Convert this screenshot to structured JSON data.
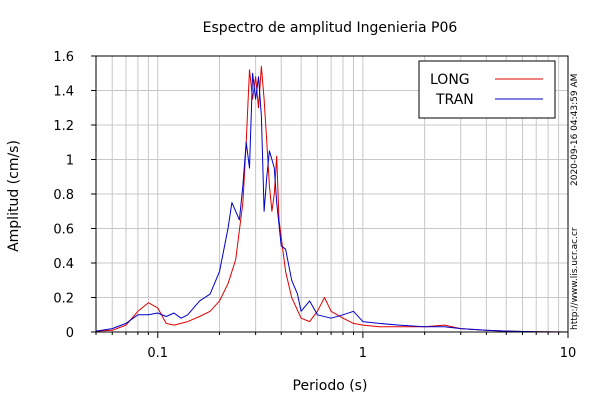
{
  "chart_data": {
    "type": "line",
    "title": "Espectro de amplitud Ingenieria P06",
    "xlabel": "Periodo (s)",
    "ylabel": "Amplitud (cm/s)",
    "xscale": "log",
    "xlim": [
      0.05,
      10
    ],
    "ylim": [
      0,
      1.6
    ],
    "x_tick_labels": [
      {
        "value": 0.1,
        "label": "0.1"
      },
      {
        "value": 1,
        "label": "1"
      },
      {
        "value": 10,
        "label": "10"
      }
    ],
    "y_tick_labels": [
      "0",
      "0.2",
      "0.4",
      "0.6",
      "0.8",
      "1",
      "1.2",
      "1.4",
      "1.6"
    ],
    "grid": true,
    "legend_position": "top-right",
    "series": [
      {
        "name": "LONG",
        "color": "#dd0000",
        "x": [
          0.05,
          0.06,
          0.07,
          0.08,
          0.09,
          0.1,
          0.11,
          0.12,
          0.14,
          0.16,
          0.18,
          0.2,
          0.22,
          0.24,
          0.26,
          0.27,
          0.28,
          0.29,
          0.3,
          0.31,
          0.32,
          0.33,
          0.34,
          0.35,
          0.36,
          0.37,
          0.38,
          0.39,
          0.4,
          0.42,
          0.45,
          0.5,
          0.55,
          0.6,
          0.65,
          0.7,
          0.8,
          0.9,
          1.0,
          1.2,
          1.5,
          2.0,
          2.5,
          3.0,
          4.0,
          5.0,
          7.0,
          10.0
        ],
        "values": [
          0.005,
          0.01,
          0.04,
          0.12,
          0.17,
          0.14,
          0.05,
          0.04,
          0.06,
          0.09,
          0.12,
          0.18,
          0.28,
          0.42,
          0.75,
          1.1,
          1.52,
          1.35,
          1.48,
          1.3,
          1.54,
          1.35,
          1.1,
          0.85,
          0.7,
          0.8,
          1.02,
          0.65,
          0.55,
          0.35,
          0.2,
          0.08,
          0.06,
          0.12,
          0.2,
          0.12,
          0.08,
          0.05,
          0.04,
          0.03,
          0.03,
          0.03,
          0.04,
          0.02,
          0.01,
          0.005,
          0.002,
          0.0
        ]
      },
      {
        "name": "TRAN",
        "color": "#0000cc",
        "x": [
          0.05,
          0.06,
          0.07,
          0.08,
          0.09,
          0.1,
          0.11,
          0.12,
          0.13,
          0.14,
          0.16,
          0.18,
          0.2,
          0.22,
          0.23,
          0.24,
          0.25,
          0.26,
          0.27,
          0.28,
          0.29,
          0.3,
          0.31,
          0.32,
          0.33,
          0.34,
          0.35,
          0.36,
          0.37,
          0.38,
          0.4,
          0.42,
          0.45,
          0.48,
          0.5,
          0.55,
          0.6,
          0.7,
          0.8,
          0.9,
          1.0,
          1.2,
          1.5,
          2.0,
          2.5,
          3.0,
          4.0,
          5.0,
          7.0,
          10.0
        ],
        "values": [
          0.005,
          0.02,
          0.05,
          0.1,
          0.1,
          0.11,
          0.09,
          0.11,
          0.08,
          0.1,
          0.18,
          0.22,
          0.35,
          0.6,
          0.75,
          0.7,
          0.65,
          0.85,
          1.1,
          0.95,
          1.5,
          1.35,
          1.48,
          1.25,
          0.7,
          0.9,
          1.05,
          1.0,
          0.95,
          0.75,
          0.5,
          0.48,
          0.3,
          0.22,
          0.12,
          0.18,
          0.1,
          0.08,
          0.1,
          0.12,
          0.06,
          0.05,
          0.04,
          0.03,
          0.03,
          0.02,
          0.01,
          0.005,
          0.002,
          0.0
        ]
      }
    ]
  },
  "side_labels": {
    "timestamp": "2020-09-16 04:43:59 AM",
    "url": "http://www.lis.ucr.ac.cr"
  }
}
